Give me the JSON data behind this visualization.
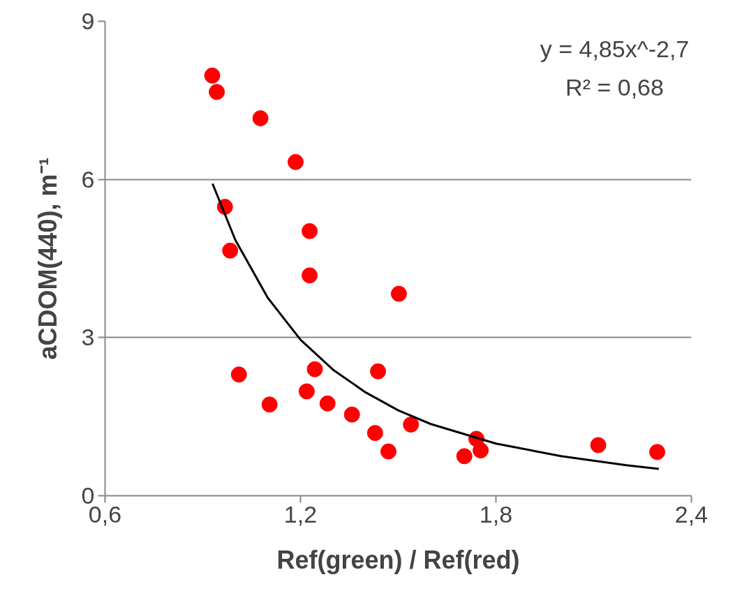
{
  "chart_data": {
    "type": "scatter",
    "xlabel": "Ref(green) / Ref(red)",
    "ylabel": "aCDOM(440), m⁻¹",
    "x": [
      0.929,
      0.943,
      1.077,
      1.185,
      0.968,
      1.228,
      0.984,
      1.228,
      1.502,
      1.011,
      1.244,
      1.438,
      1.219,
      1.105,
      1.283,
      1.358,
      1.429,
      1.47,
      1.539,
      1.74,
      1.753,
      1.703,
      2.114,
      2.295
    ],
    "series": [
      {
        "color": "#ff0000",
        "marker": "circle",
        "values": [
          7.97,
          7.66,
          7.16,
          6.33,
          5.48,
          5.02,
          4.65,
          4.18,
          3.83,
          2.3,
          2.4,
          2.36,
          1.98,
          1.73,
          1.75,
          1.54,
          1.19,
          0.84,
          1.35,
          1.08,
          0.86,
          0.75,
          0.96,
          0.83
        ]
      },
      {
        "type": "line",
        "color": "#000000",
        "line_style": "solid",
        "x": [
          0.93,
          1.0,
          1.1,
          1.2,
          1.3,
          1.4,
          1.5,
          1.6,
          1.8,
          2.0,
          2.2,
          2.3
        ],
        "values": [
          5.92,
          4.85,
          3.75,
          2.96,
          2.39,
          1.96,
          1.62,
          1.36,
          0.99,
          0.75,
          0.58,
          0.51
        ]
      }
    ],
    "xlim": [
      0.6,
      2.4
    ],
    "xticks": [
      {
        "value": 0.6,
        "label": "0,6"
      },
      {
        "value": 1.2,
        "label": "1,2"
      },
      {
        "value": 1.8,
        "label": "1,8"
      },
      {
        "value": 2.4,
        "label": "2,4"
      }
    ],
    "ylim": [
      0,
      9
    ],
    "yticks": [
      0,
      3,
      6,
      9
    ],
    "grid": "y",
    "annotations": [
      "y = 4,85x^-2,7",
      "R² = 0,68"
    ]
  }
}
